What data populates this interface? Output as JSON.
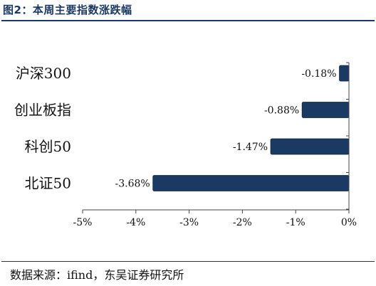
{
  "header": {
    "title": "图2：本周主要指数涨跌幅"
  },
  "footer": {
    "source": "数据来源：ifind，东吴证券研究所"
  },
  "chart_data": {
    "type": "bar",
    "orientation": "horizontal",
    "categories": [
      "沪深300",
      "创业板指",
      "科创50",
      "北证50"
    ],
    "values": [
      -0.18,
      -0.88,
      -1.47,
      -3.68
    ],
    "data_labels": [
      "-0.18%",
      "-0.88%",
      "-1.47%",
      "-3.68%"
    ],
    "xlim": [
      -5,
      0
    ],
    "xticks": [
      -5,
      -4,
      -3,
      -2,
      -1,
      0
    ],
    "xtick_labels": [
      "-5%",
      "-4%",
      "-3%",
      "-2%",
      "-1%",
      "0%"
    ],
    "bar_color": "#1b3a63",
    "grid": false,
    "legend": "none"
  }
}
